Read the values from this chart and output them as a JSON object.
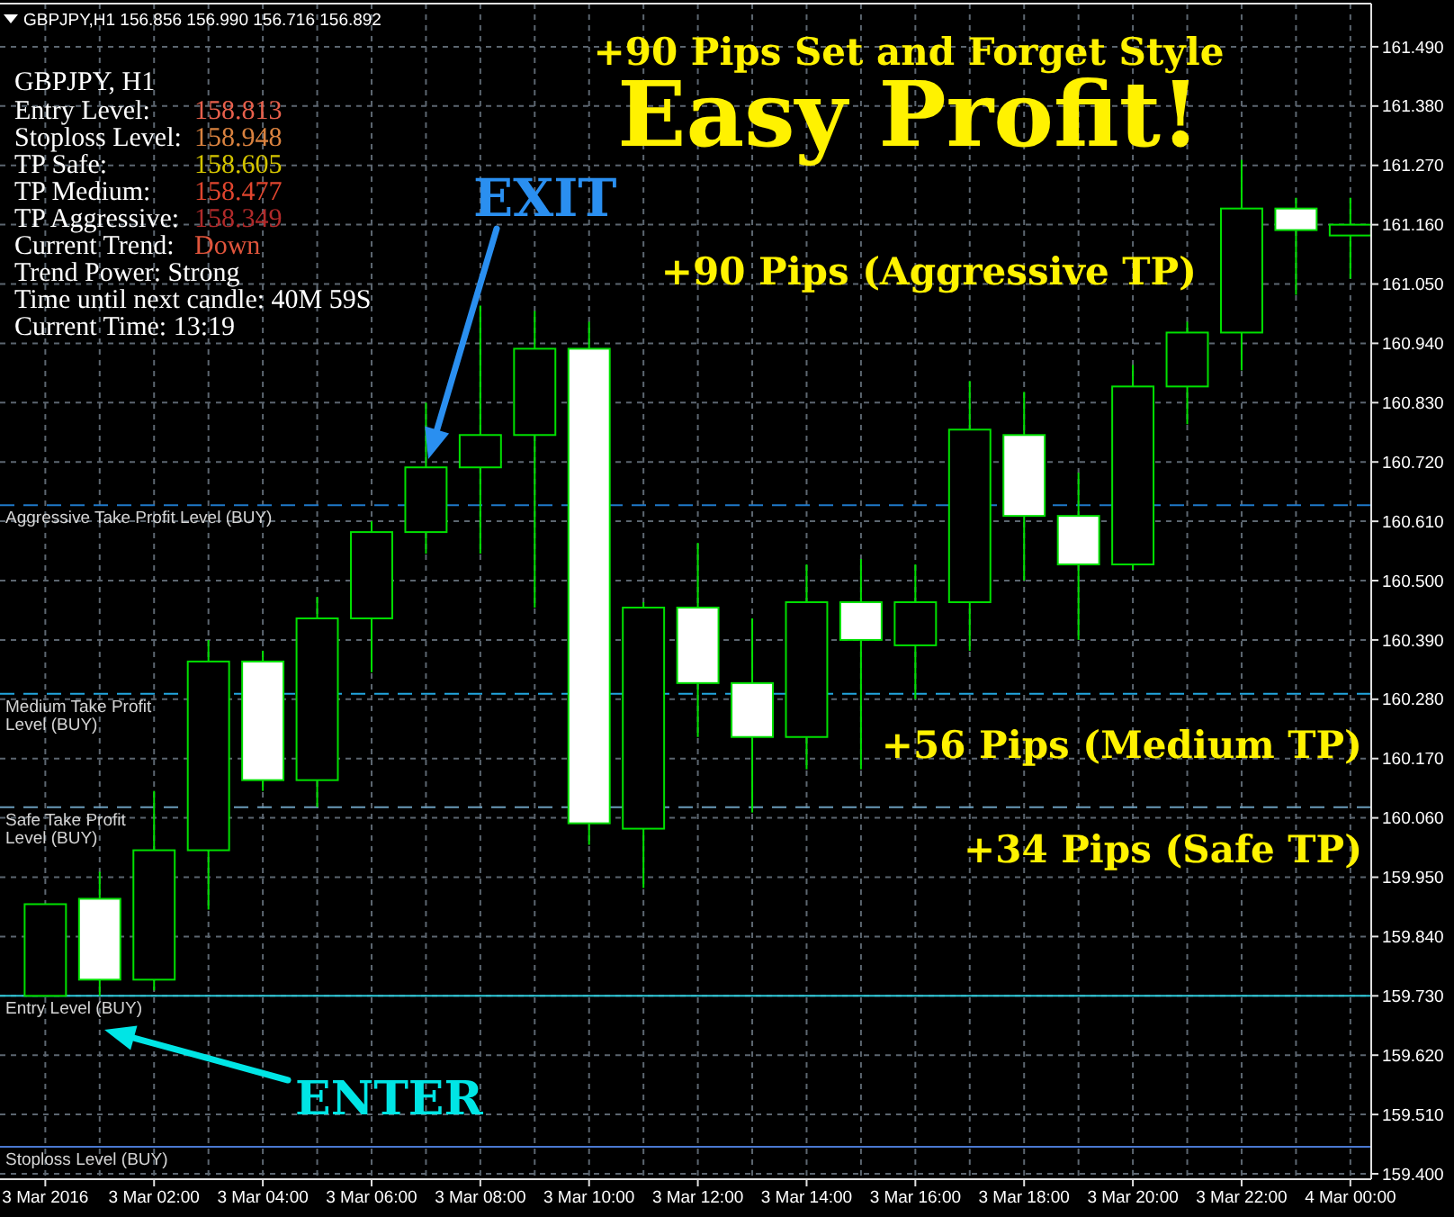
{
  "chart_data": {
    "type": "candlestick",
    "title": "Easy Profit!",
    "subtitle": "+90 Pips Set and Forget Style",
    "color": "#00e000",
    "x": [
      "2016-03-03T00:00",
      "2016-03-03T01:00",
      "2016-03-03T02:00",
      "2016-03-03T03:00",
      "2016-03-03T04:00",
      "2016-03-03T05:00",
      "2016-03-03T06:00",
      "2016-03-03T07:00",
      "2016-03-03T08:00",
      "2016-03-03T09:00",
      "2016-03-03T10:00",
      "2016-03-03T11:00",
      "2016-03-03T12:00",
      "2016-03-03T13:00",
      "2016-03-03T14:00",
      "2016-03-03T15:00",
      "2016-03-03T16:00",
      "2016-03-03T17:00",
      "2016-03-03T18:00",
      "2016-03-03T19:00",
      "2016-03-03T20:00",
      "2016-03-03T21:00",
      "2016-03-03T22:00",
      "2016-03-03T23:00",
      "2016-03-04T00:00"
    ],
    "ohlc": [
      [
        159.73,
        159.9,
        159.73,
        159.9
      ],
      [
        159.91,
        159.96,
        159.73,
        159.76
      ],
      [
        159.76,
        160.11,
        159.74,
        160.0
      ],
      [
        160.0,
        160.39,
        159.89,
        160.35
      ],
      [
        160.35,
        160.37,
        160.11,
        160.13
      ],
      [
        160.13,
        160.47,
        160.08,
        160.43
      ],
      [
        160.43,
        160.61,
        160.33,
        160.59
      ],
      [
        160.59,
        160.83,
        160.55,
        160.71
      ],
      [
        160.71,
        161.01,
        160.55,
        160.77
      ],
      [
        160.77,
        161.0,
        160.45,
        160.93
      ],
      [
        160.93,
        160.98,
        160.01,
        160.05
      ],
      [
        160.04,
        160.46,
        159.93,
        160.45
      ],
      [
        160.45,
        160.57,
        160.21,
        160.31
      ],
      [
        160.31,
        160.43,
        160.07,
        160.21
      ],
      [
        160.21,
        160.53,
        160.15,
        160.46
      ],
      [
        160.46,
        160.54,
        160.15,
        160.39
      ],
      [
        160.38,
        160.53,
        160.28,
        160.46
      ],
      [
        160.46,
        160.87,
        160.37,
        160.78
      ],
      [
        160.77,
        160.85,
        160.5,
        160.62
      ],
      [
        160.62,
        160.7,
        160.39,
        160.53
      ],
      [
        160.53,
        160.9,
        160.52,
        160.86
      ],
      [
        160.86,
        160.98,
        160.79,
        160.96
      ],
      [
        160.96,
        161.28,
        160.89,
        161.19
      ],
      [
        161.19,
        161.21,
        161.03,
        161.15
      ],
      [
        161.14,
        161.21,
        161.06,
        161.16
      ]
    ],
    "xlim": [
      "2016-03-02T23:10",
      "2016-03-04T00:23"
    ],
    "ylim": [
      159.39,
      161.57
    ],
    "xticks": [
      {
        "value": "2016-03-03T00:00",
        "label": "3 Mar 2016"
      },
      {
        "value": "2016-03-03T01:00",
        "label": null
      },
      {
        "value": "2016-03-03T02:00",
        "label": "3 Mar 02:00"
      },
      {
        "value": "2016-03-03T03:00",
        "label": null
      },
      {
        "value": "2016-03-03T04:00",
        "label": "3 Mar 04:00"
      },
      {
        "value": "2016-03-03T05:00",
        "label": null
      },
      {
        "value": "2016-03-03T06:00",
        "label": "3 Mar 06:00"
      },
      {
        "value": "2016-03-03T07:00",
        "label": null
      },
      {
        "value": "2016-03-03T08:00",
        "label": "3 Mar 08:00"
      },
      {
        "value": "2016-03-03T09:00",
        "label": null
      },
      {
        "value": "2016-03-03T10:00",
        "label": "3 Mar 10:00"
      },
      {
        "value": "2016-03-03T11:00",
        "label": null
      },
      {
        "value": "2016-03-03T12:00",
        "label": "3 Mar 12:00"
      },
      {
        "value": "2016-03-03T13:00",
        "label": null
      },
      {
        "value": "2016-03-03T14:00",
        "label": "3 Mar 14:00"
      },
      {
        "value": "2016-03-03T15:00",
        "label": null
      },
      {
        "value": "2016-03-03T16:00",
        "label": "3 Mar 16:00"
      },
      {
        "value": "2016-03-03T17:00",
        "label": null
      },
      {
        "value": "2016-03-03T18:00",
        "label": "3 Mar 18:00"
      },
      {
        "value": "2016-03-03T19:00",
        "label": null
      },
      {
        "value": "2016-03-03T20:00",
        "label": "3 Mar 20:00"
      },
      {
        "value": "2016-03-03T21:00",
        "label": null
      },
      {
        "value": "2016-03-03T22:00",
        "label": "3 Mar 22:00"
      },
      {
        "value": "2016-03-03T23:00",
        "label": null
      },
      {
        "value": "2016-03-04T00:00",
        "label": "4 Mar 00:00"
      }
    ],
    "yticks": [
      {
        "value": 159.4,
        "label": "159.400"
      },
      {
        "value": 159.51,
        "label": "159.510"
      },
      {
        "value": 159.62,
        "label": "159.620"
      },
      {
        "value": 159.73,
        "label": "159.730"
      },
      {
        "value": 159.84,
        "label": "159.840"
      },
      {
        "value": 159.95,
        "label": "159.950"
      },
      {
        "value": 160.06,
        "label": "160.060"
      },
      {
        "value": 160.17,
        "label": "160.170"
      },
      {
        "value": 160.28,
        "label": "160.280"
      },
      {
        "value": 160.39,
        "label": "160.390"
      },
      {
        "value": 160.5,
        "label": "160.500"
      },
      {
        "value": 160.61,
        "label": "160.610"
      },
      {
        "value": 160.72,
        "label": "160.720"
      },
      {
        "value": 160.83,
        "label": "160.830"
      },
      {
        "value": 160.94,
        "label": "160.940"
      },
      {
        "value": 161.05,
        "label": "161.050"
      },
      {
        "value": 161.16,
        "label": "161.160"
      },
      {
        "value": 161.27,
        "label": "161.270"
      },
      {
        "value": 161.38,
        "label": "161.380"
      },
      {
        "value": 161.49,
        "label": "161.490"
      }
    ],
    "grid": true,
    "ref_lines": [
      {
        "axis": "y",
        "value": 160.64,
        "label": "Aggressive Take Profit Level (BUY)",
        "color": "#1f78c8",
        "line_style": "dashed"
      },
      {
        "axis": "y",
        "value": 160.29,
        "label": "Medium Take Profit Level (BUY)",
        "color": "#22a6e0",
        "line_style": "dashed"
      },
      {
        "axis": "y",
        "value": 160.08,
        "label": "Safe Take Profit Level (BUY)",
        "color": "#6a9cba",
        "line_style": "dashed"
      },
      {
        "axis": "y",
        "value": 159.73,
        "label": "Entry Level (BUY)",
        "color": "#2cc8d8",
        "line_style": "solid"
      },
      {
        "axis": "y",
        "value": 159.45,
        "label": "Stoploss Level (BUY)",
        "color": "#4a78d0",
        "line_style": "solid"
      }
    ],
    "annotations": [
      "GBPJPY,H1 156.856 156.990 156.716 156.892",
      "GBPJPY, H1",
      "Entry Level:",
      "158.813",
      "Stoploss Level:",
      "158.948",
      "TP Safe:",
      "158.605",
      "TP Medium:",
      "158.477",
      "TP Aggressive:",
      "158.349",
      "Current Trend:",
      "Down",
      "Trend Power: Strong",
      "Time until next candle: 40M 59S",
      "Current Time: 13:19",
      "EXIT",
      "ENTER",
      "+90 Pips (Aggressive TP)",
      "+56 Pips (Medium TP)",
      "+34 Pips (Safe TP)"
    ]
  }
}
